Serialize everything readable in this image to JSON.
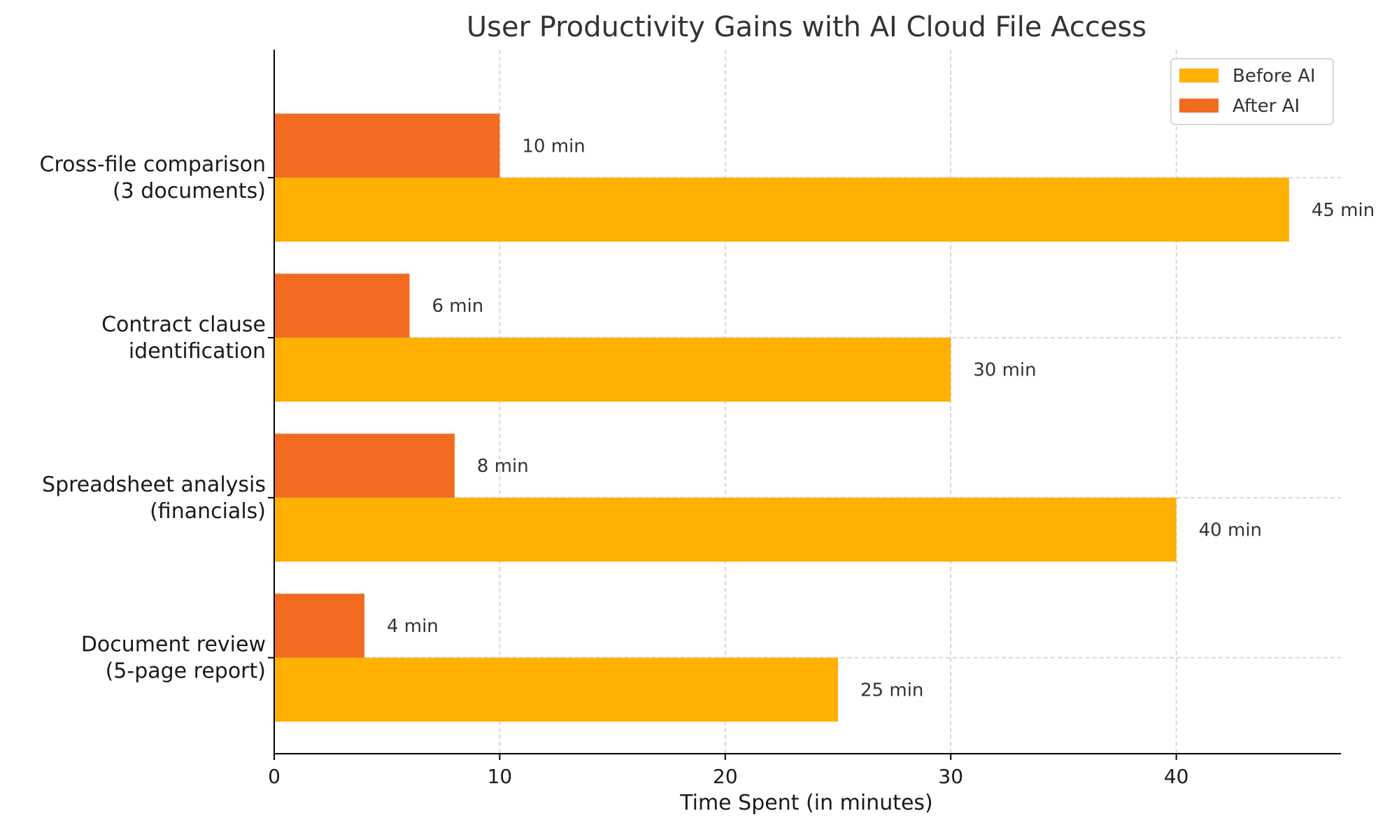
{
  "chart_data": {
    "type": "bar",
    "orientation": "horizontal",
    "title": "User Productivity Gains with AI Cloud File Access",
    "xlabel": "Time Spent (in minutes)",
    "ylabel": "",
    "xlim": [
      0,
      47.3
    ],
    "xticks": [
      0,
      10,
      20,
      30,
      40
    ],
    "grid": true,
    "legend_position": "top-right",
    "categories": [
      [
        "Document review",
        "(5-page report)"
      ],
      [
        "Spreadsheet analysis",
        "(financials)"
      ],
      [
        "Contract clause",
        "identification"
      ],
      [
        "Cross-file comparison",
        "(3 documents)"
      ]
    ],
    "series": [
      {
        "name": "Before AI",
        "color": "#FFB000",
        "values": [
          25,
          40,
          30,
          45
        ],
        "labels": [
          "25 min",
          "40 min",
          "30 min",
          "45 min"
        ]
      },
      {
        "name": "After AI",
        "color": "#F26B21",
        "values": [
          4,
          8,
          6,
          10
        ],
        "labels": [
          "4 min",
          "8 min",
          "6 min",
          "10 min"
        ]
      }
    ]
  }
}
